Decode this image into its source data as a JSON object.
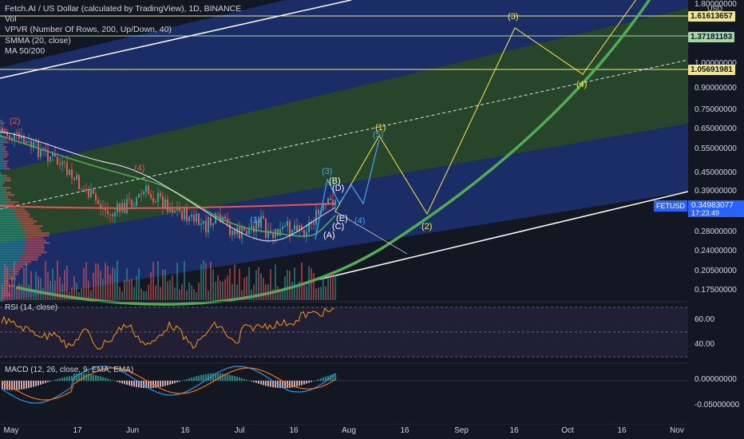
{
  "legend": {
    "title": "Fetch.AI / US Dollar (calculated by TradingView), 1D, BINANCE",
    "vol": "Vol",
    "vpvr": "VPVR (Number Of Rows, 200, Up/Down, 40)",
    "smma": "SMMA (20, close)",
    "ma": "MA 50/200"
  },
  "rsi_label": "RSI (14, close)",
  "macd_label": "MACD (12, 26, close, 9, EMA, EMA)",
  "currency": "USD",
  "price_axis": {
    "ticks": [
      "1.80000000",
      "1.00000000",
      "0.90000000",
      "0.75000000",
      "0.65000000",
      "0.55000000",
      "0.45000000",
      "0.39000000",
      "0.28000000",
      "0.24000000",
      "0.20500000",
      "0.17500000"
    ],
    "levels": [
      {
        "label": "1.61613657",
        "color": "#f0e68c"
      },
      {
        "label": "1.37181183",
        "color": "#a5d6a7"
      },
      {
        "label": "1.05691981",
        "color": "#f0e68c"
      }
    ],
    "current": {
      "symbol": "FETUSD",
      "price": "0.34983077",
      "countdown": "17:23:49"
    }
  },
  "rsi_axis": [
    "60.00",
    "40.00"
  ],
  "macd_axis": [
    "0.00000000",
    "-0.05000000"
  ],
  "time_axis": [
    "May",
    "17",
    "Jun",
    "16",
    "Jul",
    "16",
    "Aug",
    "16",
    "Sep",
    "16",
    "Oct",
    "16",
    "Nov"
  ],
  "wave_labels": [
    {
      "text": "(2)",
      "color": "#ef5350"
    },
    {
      "text": "(4)",
      "color": "#ef5350"
    },
    {
      "text": "(1)",
      "color": "#42a5f5"
    },
    {
      "text": "(3)",
      "color": "#42a5f5"
    },
    {
      "text": "(5)",
      "color": "#42a5f5"
    },
    {
      "text": "(4)",
      "color": "#42a5f5"
    },
    {
      "text": "(B)",
      "color": "#ffffff"
    },
    {
      "text": "(D)",
      "color": "#ffffff"
    },
    {
      "text": "(E)",
      "color": "#ffffff"
    },
    {
      "text": "(C)",
      "color": "#ffffff"
    },
    {
      "text": "(A)",
      "color": "#ffffff"
    },
    {
      "text": "(1)",
      "color": "#ffeb3b"
    },
    {
      "text": "(2)",
      "color": "#ffeb3b"
    },
    {
      "text": "(3)",
      "color": "#ffeb3b"
    },
    {
      "text": "(4)",
      "color": "#ffeb3b"
    }
  ],
  "colors": {
    "background": "#131722",
    "up": "#26a69a",
    "down": "#ef5350",
    "channel_blue": "#1e3a8a",
    "channel_green": "#2e5d2b",
    "curve": "#4caf50",
    "rsi": "#ff9800",
    "macd": "#2196f3",
    "signal": "#ff6d00"
  }
}
